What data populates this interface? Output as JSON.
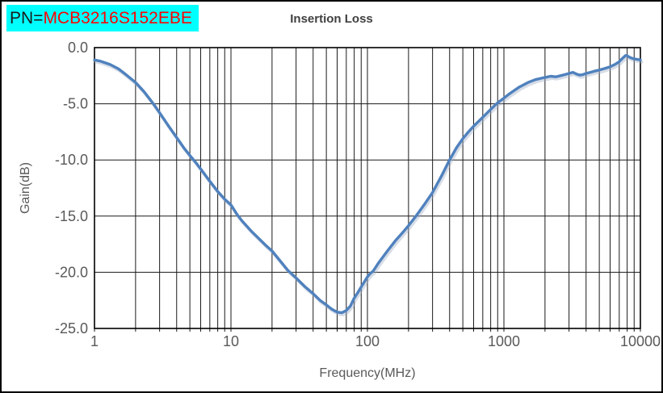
{
  "header": {
    "pn_prefix": "PN=",
    "pn_value": "MCB3216S152EBE",
    "pn_bg_color": "#00ffff",
    "pn_prefix_color": "#1a1a1a",
    "pn_value_color": "#ff0000",
    "title": "Insertion Loss"
  },
  "chart_data": {
    "type": "line",
    "title": "Insertion Loss",
    "xlabel": "Frequency(MHz)",
    "ylabel": "Gain(dB)",
    "x_scale": "log",
    "xlim": [
      1,
      10000
    ],
    "ylim": [
      -25,
      0
    ],
    "x_tick_labels": [
      "1",
      "10",
      "100",
      "1000",
      "10000"
    ],
    "x_tick_values": [
      1,
      10,
      100,
      1000,
      10000
    ],
    "y_tick_labels": [
      "0.0",
      "-5.0",
      "-10.0",
      "-15.0",
      "-20.0",
      "-25.0"
    ],
    "y_tick_values": [
      0,
      -5,
      -10,
      -15,
      -20,
      -25
    ],
    "grid": "log minor vertical gridlines, 5 dB horizontal gridlines, black on white",
    "legend_position": "none",
    "line_color": "#4f81bd",
    "shadow_color": "#9aabc4",
    "grid_color": "#1a1a1a",
    "tick_label_color": "#595959",
    "series": [
      {
        "name": "Insertion Loss",
        "points": [
          [
            1,
            -1.1
          ],
          [
            1.1,
            -1.2
          ],
          [
            1.3,
            -1.5
          ],
          [
            1.5,
            -1.9
          ],
          [
            1.7,
            -2.4
          ],
          [
            2,
            -3.1
          ],
          [
            2.3,
            -3.9
          ],
          [
            2.7,
            -5.0
          ],
          [
            3,
            -5.8
          ],
          [
            3.5,
            -7.0
          ],
          [
            4,
            -8.0
          ],
          [
            4.5,
            -8.9
          ],
          [
            5,
            -9.6
          ],
          [
            5.5,
            -10.2
          ],
          [
            6,
            -10.8
          ],
          [
            7,
            -11.9
          ],
          [
            8,
            -12.8
          ],
          [
            9,
            -13.5
          ],
          [
            10,
            -14.0
          ],
          [
            11,
            -14.8
          ],
          [
            12,
            -15.4
          ],
          [
            14,
            -16.3
          ],
          [
            16,
            -17.0
          ],
          [
            18,
            -17.6
          ],
          [
            20,
            -18.1
          ],
          [
            23,
            -19.0
          ],
          [
            26,
            -19.8
          ],
          [
            30,
            -20.5
          ],
          [
            35,
            -21.3
          ],
          [
            40,
            -21.9
          ],
          [
            45,
            -22.5
          ],
          [
            50,
            -22.9
          ],
          [
            55,
            -23.3
          ],
          [
            60,
            -23.55
          ],
          [
            65,
            -23.6
          ],
          [
            70,
            -23.4
          ],
          [
            75,
            -23.0
          ],
          [
            80,
            -22.3
          ],
          [
            85,
            -21.8
          ],
          [
            90,
            -21.3
          ],
          [
            100,
            -20.4
          ],
          [
            105,
            -20.1
          ],
          [
            110,
            -19.9
          ],
          [
            120,
            -19.2
          ],
          [
            140,
            -18.1
          ],
          [
            160,
            -17.2
          ],
          [
            180,
            -16.5
          ],
          [
            200,
            -15.85
          ],
          [
            230,
            -14.9
          ],
          [
            260,
            -14.0
          ],
          [
            300,
            -12.9
          ],
          [
            350,
            -11.4
          ],
          [
            400,
            -10.0
          ],
          [
            450,
            -8.9
          ],
          [
            500,
            -8.1
          ],
          [
            550,
            -7.5
          ],
          [
            600,
            -7.0
          ],
          [
            700,
            -6.2
          ],
          [
            800,
            -5.5
          ],
          [
            900,
            -4.9
          ],
          [
            1000,
            -4.5
          ],
          [
            1100,
            -4.1
          ],
          [
            1300,
            -3.5
          ],
          [
            1500,
            -3.1
          ],
          [
            1700,
            -2.85
          ],
          [
            2000,
            -2.65
          ],
          [
            2200,
            -2.55
          ],
          [
            2400,
            -2.6
          ],
          [
            2600,
            -2.5
          ],
          [
            2800,
            -2.4
          ],
          [
            3000,
            -2.3
          ],
          [
            3200,
            -2.2
          ],
          [
            3400,
            -2.35
          ],
          [
            3600,
            -2.45
          ],
          [
            3800,
            -2.4
          ],
          [
            4000,
            -2.3
          ],
          [
            4300,
            -2.2
          ],
          [
            4600,
            -2.1
          ],
          [
            5000,
            -2.0
          ],
          [
            5500,
            -1.85
          ],
          [
            6000,
            -1.7
          ],
          [
            6500,
            -1.5
          ],
          [
            7000,
            -1.25
          ],
          [
            7400,
            -0.95
          ],
          [
            7800,
            -0.7
          ],
          [
            8000,
            -0.72
          ],
          [
            8300,
            -0.85
          ],
          [
            8700,
            -0.95
          ],
          [
            9000,
            -1.0
          ],
          [
            9500,
            -1.05
          ],
          [
            10000,
            -1.1
          ]
        ]
      }
    ]
  }
}
